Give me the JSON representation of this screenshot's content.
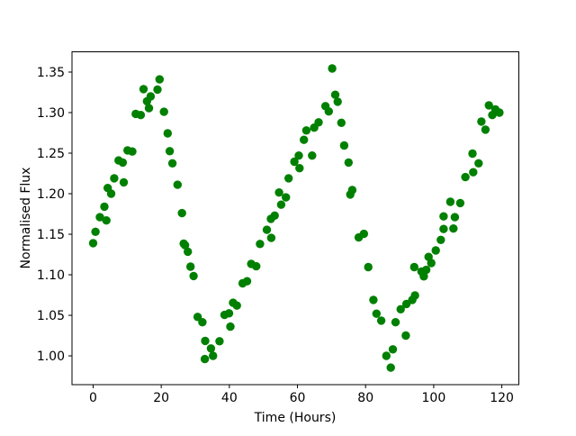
{
  "figure": {
    "background": "#ffffff"
  },
  "chart_data": {
    "type": "scatter",
    "title": "",
    "xlabel": "Time (Hours)",
    "ylabel": "Normalised Flux",
    "grid": false,
    "legend": "none",
    "marker": {
      "shape": "circle",
      "color": "#008000",
      "radius_px": 4.7
    },
    "axis_color": "#000000",
    "xlim": [
      -6.2,
      125.0
    ],
    "ylim": [
      0.9645,
      1.375
    ],
    "xticks": [
      {
        "value": 0,
        "label": "0"
      },
      {
        "value": 20,
        "label": "20"
      },
      {
        "value": 40,
        "label": "40"
      },
      {
        "value": 60,
        "label": "60"
      },
      {
        "value": 80,
        "label": "80"
      },
      {
        "value": 100,
        "label": "100"
      },
      {
        "value": 120,
        "label": "120"
      }
    ],
    "yticks": [
      {
        "value": 1.0,
        "label": "1.00"
      },
      {
        "value": 1.05,
        "label": "1.05"
      },
      {
        "value": 1.1,
        "label": "1.10"
      },
      {
        "value": 1.15,
        "label": "1.15"
      },
      {
        "value": 1.2,
        "label": "1.20"
      },
      {
        "value": 1.25,
        "label": "1.25"
      },
      {
        "value": 1.3,
        "label": "1.30"
      }
    ],
    "yticks_extra": [
      {
        "value": 1.35,
        "label": "1.35"
      }
    ],
    "points": [
      [
        0.0,
        1.139
      ],
      [
        0.7,
        1.153
      ],
      [
        2.0,
        1.171
      ],
      [
        3.3,
        1.184
      ],
      [
        3.9,
        1.167
      ],
      [
        4.3,
        1.207
      ],
      [
        5.3,
        1.2
      ],
      [
        6.2,
        1.219
      ],
      [
        7.5,
        1.241
      ],
      [
        8.7,
        1.2385
      ],
      [
        9.0,
        1.214
      ],
      [
        10.1,
        1.2535
      ],
      [
        11.5,
        1.252
      ],
      [
        12.5,
        1.2985
      ],
      [
        14.0,
        1.297
      ],
      [
        14.8,
        1.329
      ],
      [
        15.8,
        1.314
      ],
      [
        16.4,
        1.3055
      ],
      [
        16.9,
        1.32
      ],
      [
        18.9,
        1.3285
      ],
      [
        19.5,
        1.341
      ],
      [
        20.8,
        1.301
      ],
      [
        21.9,
        1.2745
      ],
      [
        22.5,
        1.2525
      ],
      [
        23.3,
        1.2375
      ],
      [
        24.8,
        1.211
      ],
      [
        26.1,
        1.176
      ],
      [
        26.6,
        1.1385
      ],
      [
        27.0,
        1.1365
      ],
      [
        27.8,
        1.1285
      ],
      [
        28.6,
        1.11
      ],
      [
        29.5,
        1.0985
      ],
      [
        30.7,
        1.048
      ],
      [
        32.1,
        1.0415
      ],
      [
        32.9,
        1.0185
      ],
      [
        32.8,
        0.996
      ],
      [
        34.6,
        1.0092
      ],
      [
        35.2,
        1.0
      ],
      [
        37.1,
        1.018
      ],
      [
        38.6,
        1.0505
      ],
      [
        39.9,
        1.0525
      ],
      [
        40.3,
        1.036
      ],
      [
        41.1,
        1.0655
      ],
      [
        42.2,
        1.062
      ],
      [
        43.9,
        1.0895
      ],
      [
        45.2,
        1.092
      ],
      [
        46.4,
        1.1135
      ],
      [
        47.9,
        1.1105
      ],
      [
        49.0,
        1.138
      ],
      [
        51.0,
        1.1555
      ],
      [
        52.2,
        1.169
      ],
      [
        52.3,
        1.1455
      ],
      [
        53.3,
        1.173
      ],
      [
        54.6,
        1.2015
      ],
      [
        55.2,
        1.1865
      ],
      [
        56.6,
        1.1955
      ],
      [
        57.4,
        1.219
      ],
      [
        59.1,
        1.2395
      ],
      [
        60.4,
        1.247
      ],
      [
        60.6,
        1.2315
      ],
      [
        61.9,
        1.2665
      ],
      [
        62.6,
        1.278
      ],
      [
        64.3,
        1.247
      ],
      [
        64.9,
        1.2815
      ],
      [
        66.2,
        1.288
      ],
      [
        68.2,
        1.308
      ],
      [
        69.2,
        1.3015
      ],
      [
        70.2,
        1.3545
      ],
      [
        71.1,
        1.322
      ],
      [
        71.8,
        1.3135
      ],
      [
        72.9,
        1.2875
      ],
      [
        73.7,
        1.2595
      ],
      [
        75.0,
        1.2385
      ],
      [
        75.5,
        1.199
      ],
      [
        76.1,
        1.2045
      ],
      [
        78.0,
        1.146
      ],
      [
        79.5,
        1.1505
      ],
      [
        80.8,
        1.1095
      ],
      [
        82.3,
        1.069
      ],
      [
        83.2,
        1.052
      ],
      [
        84.6,
        1.0435
      ],
      [
        86.1,
        1.0
      ],
      [
        87.4,
        0.9855
      ],
      [
        88.0,
        1.008
      ],
      [
        88.8,
        1.0415
      ],
      [
        90.3,
        1.0575
      ],
      [
        91.8,
        1.025
      ],
      [
        92.0,
        1.064
      ],
      [
        93.7,
        1.069
      ],
      [
        94.3,
        1.1095
      ],
      [
        94.5,
        1.0745
      ],
      [
        96.4,
        1.104
      ],
      [
        97.1,
        1.098
      ],
      [
        97.8,
        1.106
      ],
      [
        98.5,
        1.122
      ],
      [
        99.3,
        1.1145
      ],
      [
        100.6,
        1.13
      ],
      [
        102.1,
        1.143
      ],
      [
        102.9,
        1.1565
      ],
      [
        105.8,
        1.157
      ],
      [
        102.9,
        1.172
      ],
      [
        106.2,
        1.171
      ],
      [
        104.9,
        1.19
      ],
      [
        107.8,
        1.1885
      ],
      [
        109.3,
        1.2205
      ],
      [
        111.6,
        1.2265
      ],
      [
        111.4,
        1.2495
      ],
      [
        113.2,
        1.2375
      ],
      [
        114.0,
        1.289
      ],
      [
        115.2,
        1.279
      ],
      [
        116.2,
        1.309
      ],
      [
        117.2,
        1.297
      ],
      [
        118.1,
        1.304
      ],
      [
        119.3,
        1.3
      ]
    ]
  }
}
